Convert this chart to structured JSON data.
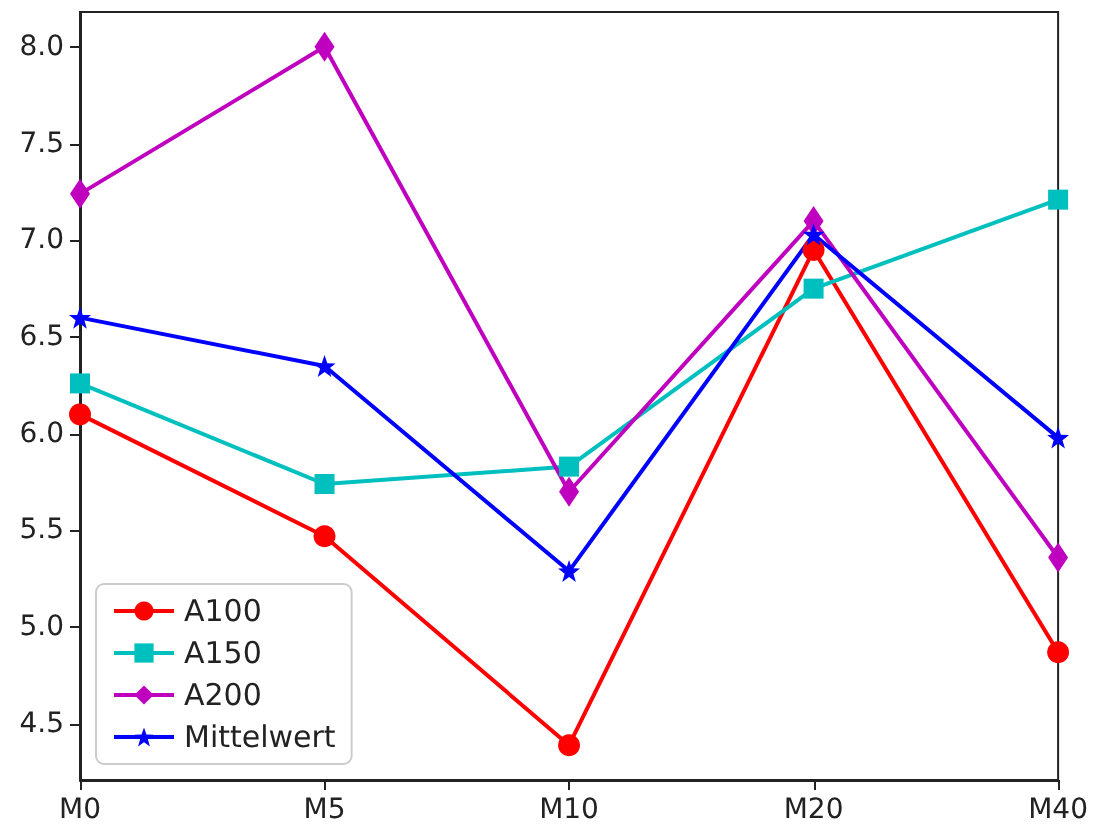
{
  "chart_data": {
    "type": "line",
    "categories": [
      "M0",
      "M5",
      "M10",
      "M20",
      "M40"
    ],
    "series": [
      {
        "name": "A100",
        "color": "#ff0000",
        "marker": "circle",
        "values": [
          6.1,
          5.47,
          4.39,
          6.95,
          4.87
        ]
      },
      {
        "name": "A150",
        "color": "#00bfbf",
        "marker": "square",
        "values": [
          6.26,
          5.74,
          5.83,
          6.75,
          7.21
        ]
      },
      {
        "name": "A200",
        "color": "#bf00bf",
        "marker": "diamond",
        "values": [
          7.24,
          8.0,
          5.7,
          7.1,
          5.36
        ]
      },
      {
        "name": "Mittelwert",
        "color": "#0000ff",
        "marker": "star",
        "values": [
          6.6,
          6.35,
          5.29,
          7.03,
          5.98
        ]
      }
    ],
    "ylim": [
      4.21,
      8.18
    ],
    "yticks": [
      4.5,
      {
        "value": 5,
        "label": "5.0"
      },
      5.5,
      {
        "value": 6,
        "label": "6.0"
      },
      6.5,
      {
        "value": 7,
        "label": "7.0"
      },
      7.5,
      {
        "value": 8,
        "label": "8.0"
      }
    ],
    "grid": false,
    "legend": "bottom left",
    "line_style": "solid"
  }
}
